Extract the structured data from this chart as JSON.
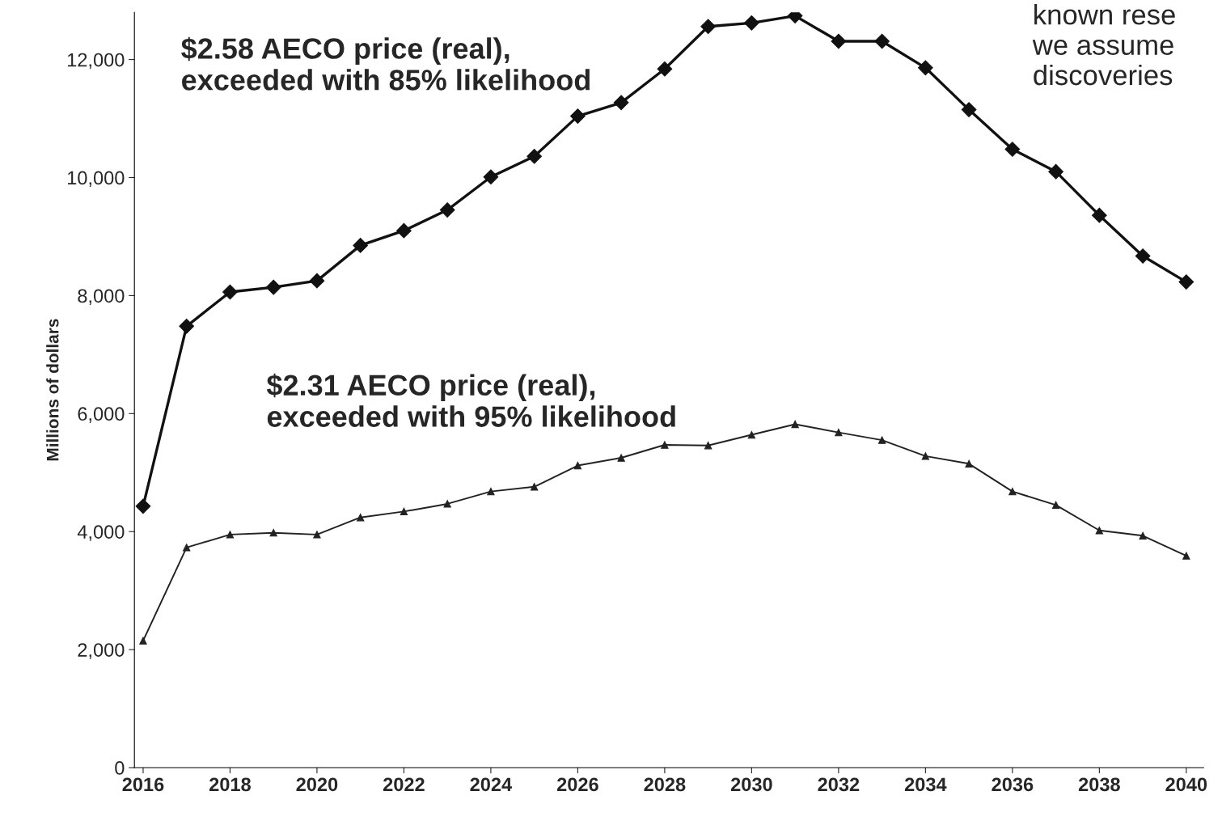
{
  "chart_data": {
    "type": "line",
    "ylabel": "Millions of dollars",
    "x": [
      2016,
      2017,
      2018,
      2019,
      2020,
      2021,
      2022,
      2023,
      2024,
      2025,
      2026,
      2027,
      2028,
      2029,
      2030,
      2031,
      2032,
      2033,
      2034,
      2035,
      2036,
      2037,
      2038,
      2039,
      2040
    ],
    "series": [
      {
        "color": "#111111",
        "marker": "diamond",
        "values": [
          4430,
          7480,
          8060,
          8140,
          8250,
          8850,
          9100,
          9450,
          10010,
          10360,
          11040,
          11270,
          11840,
          12560,
          12620,
          12740,
          12310,
          12310,
          11860,
          11150,
          10480,
          10100,
          9360,
          8670,
          8230
        ]
      },
      {
        "color": "#222222",
        "marker": "triangle",
        "values": [
          2150,
          3730,
          3950,
          3980,
          3950,
          4240,
          4340,
          4470,
          4680,
          4760,
          5120,
          5250,
          5470,
          5460,
          5640,
          5820,
          5680,
          5550,
          5280,
          5150,
          4680,
          4450,
          4020,
          3930,
          3590
        ]
      }
    ],
    "xlim": [
      2015.8,
      2040.4
    ],
    "xticks": [
      2016,
      2018,
      2020,
      2022,
      2024,
      2026,
      2028,
      2030,
      2032,
      2034,
      2036,
      2038,
      2040
    ],
    "ylim": [
      0,
      12800
    ],
    "yticks": [
      0,
      {
        "value": 2000,
        "label": "2,000"
      },
      {
        "value": 4000,
        "label": "4,000"
      },
      {
        "value": 6000,
        "label": "6,000"
      },
      {
        "value": 8000,
        "label": "8,000"
      },
      {
        "value": 10000,
        "label": "10,000"
      },
      {
        "value": 12000,
        "label": "12,000"
      }
    ],
    "annotations": [
      "$2.58 AECO price (real),\nexceeded with 85% likelihood",
      "$2.31 AECO price (real),\nexceeded with 95% likelihood",
      "known rese\nwe assume\ndiscoveries"
    ],
    "grid": false,
    "line_style": "solid"
  }
}
